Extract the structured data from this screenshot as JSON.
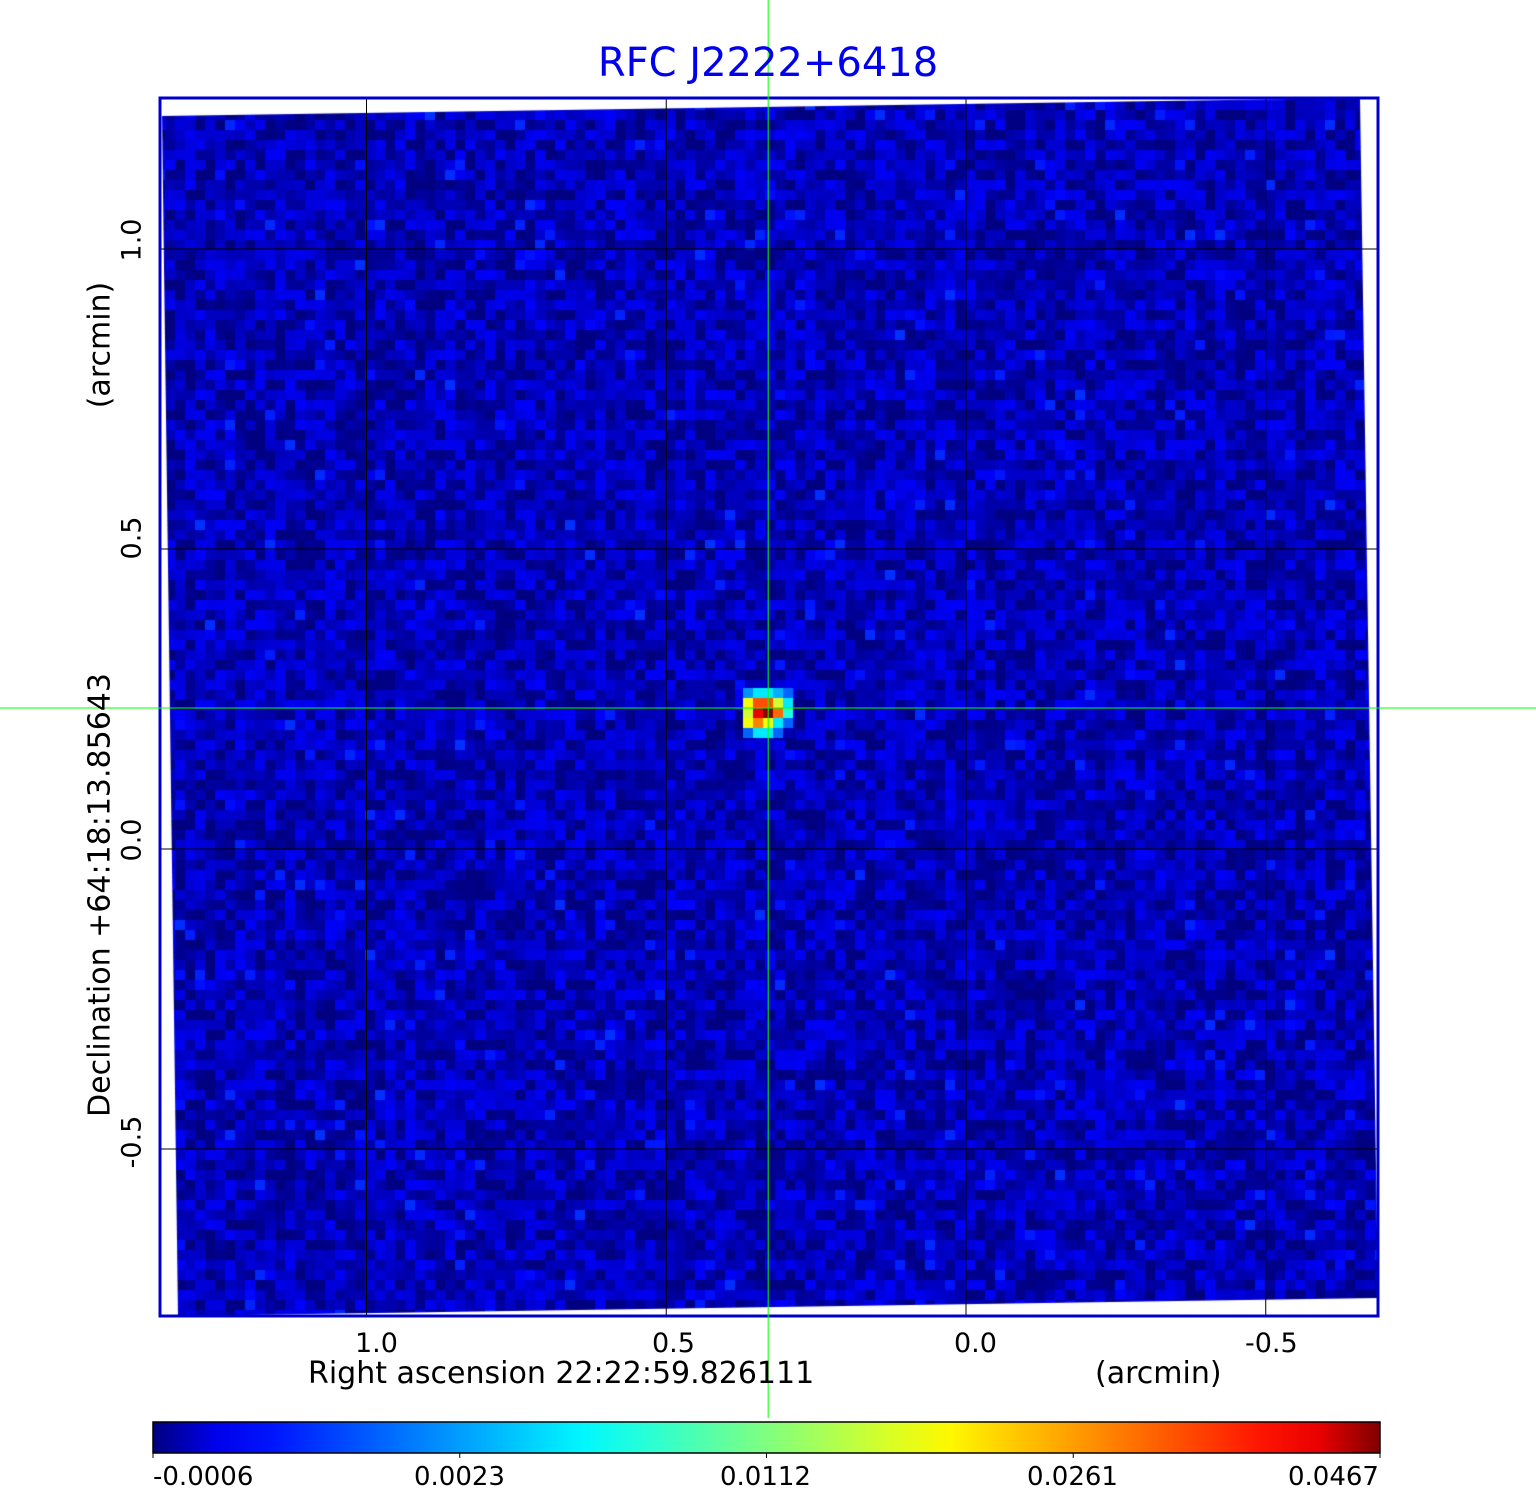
{
  "chart_data": {
    "type": "heatmap",
    "title": "RFC J2222+6418",
    "xlabel": "Right ascension  22:22:59.826111",
    "xunit": "(arcmin)",
    "ylabel": "Declination  +64:18:13.85643",
    "yunit": "(arcmin)",
    "x_ticks": [
      "1.0",
      "0.5",
      "0.0",
      "-0.5"
    ],
    "y_ticks": [
      "1.0",
      "0.5",
      "0.0",
      "-0.5"
    ],
    "xlim": [
      1.34,
      -0.69
    ],
    "ylim": [
      -0.78,
      1.25
    ],
    "grid": true,
    "crosshair": {
      "x": 0.33,
      "y": 0.235,
      "color": "#00ff00"
    },
    "frame_color": "#0000cc",
    "colormap": "jet",
    "colorbar": {
      "ticks": [
        "-0.0006",
        "0.0023",
        "0.0112",
        "0.0261",
        "0.0467"
      ],
      "range": [
        -0.0006,
        0.0467
      ]
    },
    "background_level": 0.0,
    "source_peak": {
      "ra_offset": 0.33,
      "dec_offset": 0.235,
      "peak_value": 0.0467,
      "pixels": [
        [
          0.003,
          0.006,
          0.006,
          0.004,
          0.002
        ],
        [
          0.018,
          0.03,
          0.03,
          0.016,
          0.006
        ],
        [
          0.016,
          0.038,
          0.046,
          0.028,
          0.008
        ],
        [
          0.018,
          0.026,
          0.018,
          0.006,
          0.002
        ],
        [
          0.002,
          0.006,
          0.006,
          0.002,
          0.0
        ]
      ]
    }
  }
}
